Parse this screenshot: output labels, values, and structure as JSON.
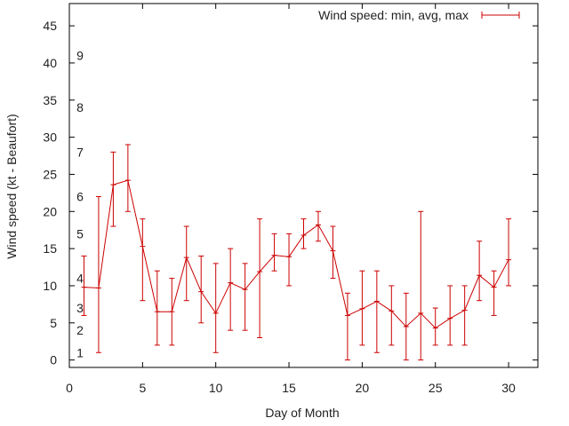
{
  "chart_data": {
    "type": "line",
    "title": "",
    "xlabel": "Day of Month",
    "ylabel": "Wind speed (kt - Beaufort)",
    "xlim": [
      0,
      32
    ],
    "ylim": [
      -1,
      48
    ],
    "x_ticks": [
      0,
      5,
      10,
      15,
      20,
      25,
      30
    ],
    "y_ticks": [
      0,
      5,
      10,
      15,
      20,
      25,
      30,
      35,
      40,
      45
    ],
    "beaufort_labels": [
      {
        "label": "1",
        "value": 1
      },
      {
        "label": "2",
        "value": 4
      },
      {
        "label": "3",
        "value": 7
      },
      {
        "label": "4",
        "value": 11
      },
      {
        "label": "5",
        "value": 17
      },
      {
        "label": "6",
        "value": 22
      },
      {
        "label": "7",
        "value": 28
      },
      {
        "label": "8",
        "value": 34
      },
      {
        "label": "9",
        "value": 41
      }
    ],
    "legend": {
      "label": "Wind speed: min, avg, max",
      "position": "top-right"
    },
    "series": [
      {
        "name": "Wind speed: min, avg, max",
        "color": "#cc0000",
        "points": [
          {
            "day": 1,
            "min": 6,
            "avg": 9.8,
            "max": 14
          },
          {
            "day": 2,
            "min": 1,
            "avg": 9.7,
            "max": 22
          },
          {
            "day": 3,
            "min": 18,
            "avg": 23.6,
            "max": 28
          },
          {
            "day": 4,
            "min": 20,
            "avg": 24.2,
            "max": 29
          },
          {
            "day": 5,
            "min": 8,
            "avg": 15.3,
            "max": 19
          },
          {
            "day": 6,
            "min": 2,
            "avg": 6.5,
            "max": 12
          },
          {
            "day": 7,
            "min": 2,
            "avg": 6.5,
            "max": 11
          },
          {
            "day": 8,
            "min": 8,
            "avg": 13.8,
            "max": 18
          },
          {
            "day": 9,
            "min": 5,
            "avg": 9.2,
            "max": 14
          },
          {
            "day": 10,
            "min": 1,
            "avg": 6.3,
            "max": 13
          },
          {
            "day": 11,
            "min": 4,
            "avg": 10.4,
            "max": 15
          },
          {
            "day": 12,
            "min": 4,
            "avg": 9.5,
            "max": 13
          },
          {
            "day": 13,
            "min": 3,
            "avg": 11.9,
            "max": 19
          },
          {
            "day": 14,
            "min": 12,
            "avg": 14.1,
            "max": 17
          },
          {
            "day": 15,
            "min": 10,
            "avg": 13.9,
            "max": 17
          },
          {
            "day": 16,
            "min": 15,
            "avg": 16.8,
            "max": 19
          },
          {
            "day": 17,
            "min": 16,
            "avg": 18.2,
            "max": 20
          },
          {
            "day": 18,
            "min": 11,
            "avg": 14.7,
            "max": 18
          },
          {
            "day": 19,
            "min": 0,
            "avg": 6,
            "max": 9
          },
          {
            "day": 20,
            "min": 2,
            "avg": 6.9,
            "max": 12
          },
          {
            "day": 21,
            "min": 1,
            "avg": 7.9,
            "max": 12
          },
          {
            "day": 22,
            "min": 2,
            "avg": 6.6,
            "max": 10
          },
          {
            "day": 23,
            "min": 0,
            "avg": 4.5,
            "max": 9
          },
          {
            "day": 24,
            "min": 0,
            "avg": 6.3,
            "max": 20
          },
          {
            "day": 25,
            "min": 2,
            "avg": 4.3,
            "max": 7
          },
          {
            "day": 26,
            "min": 2,
            "avg": 5.6,
            "max": 10
          },
          {
            "day": 27,
            "min": 2,
            "avg": 6.7,
            "max": 10
          },
          {
            "day": 28,
            "min": 8,
            "avg": 11.4,
            "max": 16
          },
          {
            "day": 29,
            "min": 6,
            "avg": 9.8,
            "max": 12
          },
          {
            "day": 30,
            "min": 10,
            "avg": 13.5,
            "max": 19
          }
        ]
      }
    ]
  }
}
